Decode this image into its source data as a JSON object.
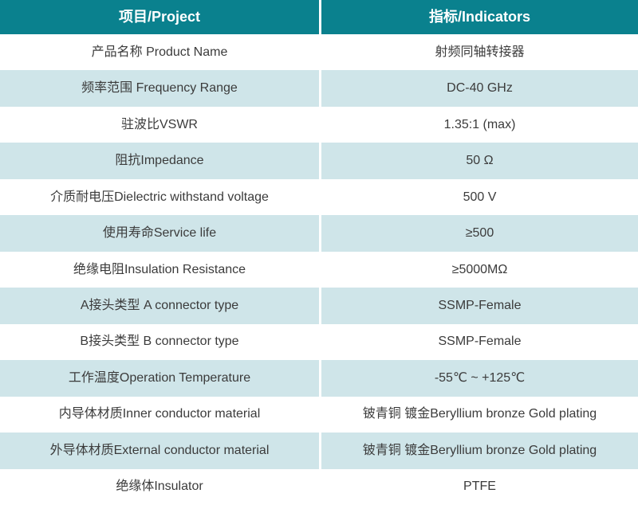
{
  "table": {
    "title": "RF coaxial adapter specification table",
    "colors": {
      "header_bg": "#0a818e",
      "header_text": "#ffffff",
      "row_bg": "#ffffff",
      "row_alt_bg": "#cfe5e9",
      "body_text": "#3b3b3b",
      "divider": "#ffffff"
    },
    "header": {
      "project": "项目/Project",
      "indicators": "指标/Indicators"
    },
    "rows": [
      {
        "project": "产品名称 Product Name",
        "indicator": "射频同轴转接器"
      },
      {
        "project": "频率范围 Frequency Range",
        "indicator": "DC-40 GHz"
      },
      {
        "project": "驻波比VSWR",
        "indicator": "1.35:1 (max)"
      },
      {
        "project": "阻抗Impedance",
        "indicator": "50 Ω"
      },
      {
        "project": "介质耐电压Dielectric withstand voltage",
        "indicator": "500 V"
      },
      {
        "project": "使用寿命Service life",
        "indicator": "≥500"
      },
      {
        "project": "绝缘电阻Insulation Resistance",
        "indicator": "≥5000MΩ"
      },
      {
        "project": "A接头类型 A connector type",
        "indicator": "SSMP-Female"
      },
      {
        "project": "B接头类型 B connector type",
        "indicator": "SSMP-Female"
      },
      {
        "project": "工作温度Operation Temperature",
        "indicator": "-55℃ ~ +125℃"
      },
      {
        "project": "内导体材质Inner conductor material",
        "indicator": "铍青铜 镀金Beryllium bronze Gold plating"
      },
      {
        "project": "外导体材质External conductor material",
        "indicator": "铍青铜 镀金Beryllium bronze Gold plating"
      },
      {
        "project": "绝缘体Insulator",
        "indicator": "PTFE"
      }
    ]
  }
}
